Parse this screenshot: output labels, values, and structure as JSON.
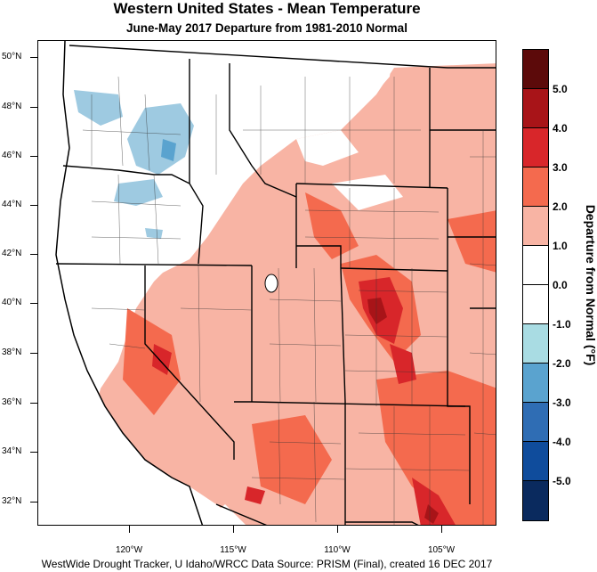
{
  "title": "Western United States - Mean Temperature",
  "subtitle": "June-May 2017  Departure from 1981-2010 Normal",
  "credit": "WestWide Drought Tracker, U Idaho/WRCC Data Source: PRISM (Final), created 16 DEC 2017",
  "map": {
    "latitude_labels": [
      "50°N",
      "48°N",
      "46°N",
      "44°N",
      "42°N",
      "40°N",
      "38°N",
      "36°N",
      "34°N",
      "32°N"
    ],
    "longitude_labels": [
      "120°W",
      "115°W",
      "110°W",
      "105°W"
    ]
  },
  "legend": {
    "title": "Departure from Normal (°F)",
    "labels": [
      "5.0",
      "4.0",
      "3.0",
      "2.0",
      "1.0",
      "0.0",
      "-1.0",
      "-2.0",
      "-3.0",
      "-4.0",
      "-5.0"
    ],
    "colors": [
      "#5c0a0a",
      "#a81418",
      "#d8262a",
      "#f46a4e",
      "#f8b4a4",
      "#ffffff",
      "#ffffff",
      "#a9dce3",
      "#5aa3cf",
      "#2f6db4",
      "#0f4c9c",
      "#0a2a5e"
    ]
  },
  "colors": {
    "cold": "#9ecae1",
    "neutral": "#ffffff",
    "warm1": "#f8b4a4",
    "warm2": "#f46a4e",
    "warm3": "#d8262a",
    "warm4": "#a81418"
  }
}
